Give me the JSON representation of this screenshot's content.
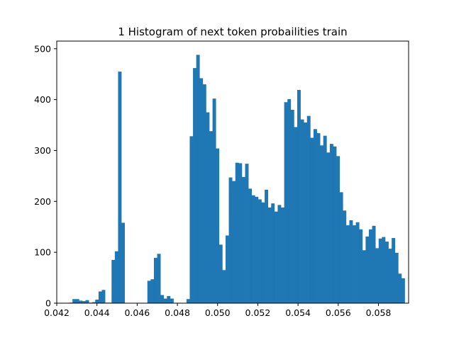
{
  "chart_data": {
    "type": "bar",
    "title": "1 Histogram of next token probailities train",
    "xlabel": "",
    "ylabel": "",
    "xlim": [
      0.042,
      0.0595
    ],
    "ylim": [
      0,
      515
    ],
    "xticks": [
      0.042,
      0.044,
      0.046,
      0.048,
      0.05,
      0.052,
      0.054,
      0.056,
      0.058
    ],
    "xtick_labels": [
      "0.042",
      "0.044",
      "0.046",
      "0.048",
      "0.050",
      "0.052",
      "0.054",
      "0.056",
      "0.058"
    ],
    "yticks": [
      0,
      100,
      200,
      300,
      400,
      500
    ],
    "ytick_labels": [
      "0",
      "100",
      "200",
      "300",
      "400",
      "500"
    ],
    "grid": false,
    "color": "#1f77b4",
    "bin_start": 0.04262,
    "bin_width": 0.000162,
    "values": [
      1,
      8,
      8,
      5,
      4,
      6,
      1,
      2,
      7,
      23,
      26,
      1,
      1,
      85,
      102,
      455,
      158,
      0,
      0,
      0,
      0,
      0,
      0,
      0,
      44,
      47,
      89,
      97,
      16,
      9,
      14,
      9,
      0,
      0,
      0,
      0,
      8,
      328,
      462,
      488,
      442,
      430,
      375,
      338,
      402,
      304,
      115,
      65,
      133,
      247,
      240,
      276,
      275,
      248,
      274,
      225,
      212,
      209,
      204,
      198,
      223,
      188,
      196,
      180,
      193,
      188,
      395,
      401,
      380,
      346,
      419,
      361,
      355,
      368,
      325,
      342,
      334,
      310,
      329,
      296,
      313,
      308,
      289,
      218,
      182,
      153,
      163,
      153,
      159,
      145,
      104,
      131,
      145,
      152,
      108,
      127,
      130,
      121,
      107,
      128,
      99,
      58,
      49
    ]
  }
}
